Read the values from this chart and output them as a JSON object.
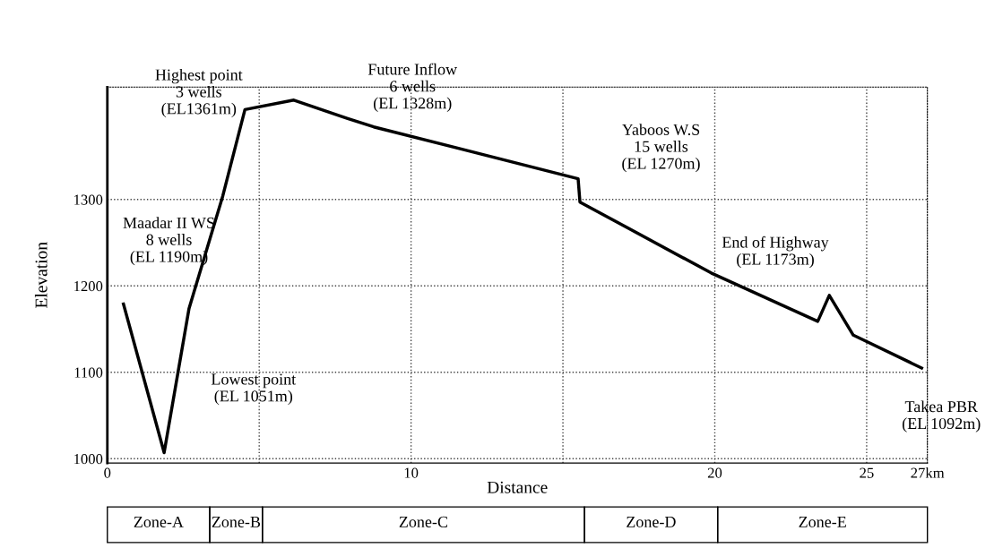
{
  "chart_data": {
    "type": "line",
    "xlabel": "Distance",
    "ylabel": "Elevation",
    "x": [
      0.53,
      1.87,
      2.69,
      3.8,
      4.53,
      6.14,
      7.89,
      8.77,
      15.5,
      15.56,
      19.88,
      23.39,
      23.77,
      24.56,
      26.81
    ],
    "series": [
      {
        "color": "#000000",
        "values": [
          1179,
          1007,
          1174,
          1304,
          1404,
          1415,
          1394,
          1384,
          1324,
          1297,
          1215,
          1159,
          1189,
          1143,
          1105
        ]
      }
    ],
    "xlim": [
      0,
      27
    ],
    "xticks": [
      0,
      {
        "value": 5,
        "label": null
      },
      10,
      {
        "value": 15,
        "label": null
      },
      20,
      25,
      {
        "value": 27,
        "label": "27km"
      }
    ],
    "ylim": [
      995,
      1430
    ],
    "yticks": [
      1000,
      1100,
      1200,
      1300
    ],
    "grid": true,
    "marker": "none",
    "line_style": "solid",
    "annotations": [
      "Highest point\n3 wells\n(EL1361m)",
      "Maadar II WS\n8 wells\n(EL 1190m)",
      "Lowest point\n(EL 1051m)",
      "Future Inflow\n6 wells\n(EL 1328m)",
      "Yaboos W.S\n15 wells\n(EL 1270m)",
      "End of Highway\n(EL 1173m)",
      "Takea PBR\n(EL 1092m)",
      "Zone-A",
      "Zone-B",
      "Zone-C",
      "Zone-D",
      "Zone-E"
    ]
  }
}
